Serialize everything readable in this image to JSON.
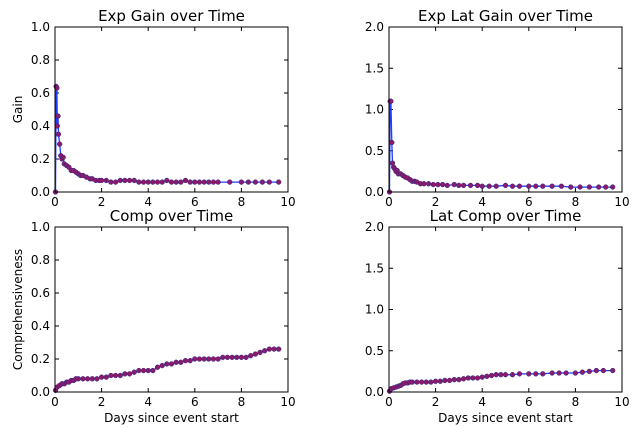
{
  "chart_data": [
    {
      "type": "line",
      "title": "Exp Gain over Time",
      "xlabel": "",
      "ylabel": "Gain",
      "xlim": [
        0,
        10
      ],
      "ylim": [
        0,
        1.0
      ],
      "xticks": [
        "0",
        "2",
        "4",
        "6",
        "8",
        "10"
      ],
      "yticks": [
        "0.0",
        "0.2",
        "0.4",
        "0.6",
        "0.8",
        "1.0"
      ],
      "grid": false,
      "line_color": "#1f3cff",
      "marker_color": "#8b1a6b",
      "series": [
        {
          "x": [
            0.02,
            0.05,
            0.08,
            0.1,
            0.13,
            0.15,
            0.2,
            0.25,
            0.3,
            0.35,
            0.4,
            0.5,
            0.6,
            0.7,
            0.8,
            0.9,
            1.0,
            1.1,
            1.2,
            1.35,
            1.5,
            1.6,
            1.75,
            1.9,
            2.0,
            2.2,
            2.4,
            2.6,
            2.8,
            3.0,
            3.2,
            3.4,
            3.6,
            3.8,
            4.0,
            4.2,
            4.4,
            4.6,
            4.8,
            5.0,
            5.2,
            5.4,
            5.6,
            5.8,
            6.0,
            6.2,
            6.4,
            6.6,
            6.8,
            7.0,
            7.5,
            8.0,
            8.3,
            8.6,
            8.9,
            9.2,
            9.6
          ],
          "y": [
            0.0,
            0.64,
            0.63,
            0.4,
            0.46,
            0.35,
            0.29,
            0.22,
            0.2,
            0.21,
            0.17,
            0.16,
            0.15,
            0.13,
            0.13,
            0.12,
            0.11,
            0.1,
            0.1,
            0.09,
            0.08,
            0.08,
            0.07,
            0.07,
            0.07,
            0.07,
            0.06,
            0.06,
            0.07,
            0.07,
            0.07,
            0.07,
            0.06,
            0.06,
            0.06,
            0.06,
            0.06,
            0.06,
            0.07,
            0.06,
            0.06,
            0.06,
            0.07,
            0.06,
            0.06,
            0.06,
            0.06,
            0.06,
            0.06,
            0.06,
            0.06,
            0.06,
            0.06,
            0.06,
            0.06,
            0.06,
            0.06
          ]
        }
      ]
    },
    {
      "type": "line",
      "title": "Exp Lat Gain over Time",
      "xlabel": "",
      "ylabel": "",
      "xlim": [
        0,
        10
      ],
      "ylim": [
        0,
        2.0
      ],
      "xticks": [
        "0",
        "2",
        "4",
        "6",
        "8",
        "10"
      ],
      "yticks": [
        "0.0",
        "0.5",
        "1.0",
        "1.5",
        "2.0"
      ],
      "grid": false,
      "line_color": "#1f3cff",
      "marker_color": "#8b1a6b",
      "series": [
        {
          "x": [
            0.02,
            0.05,
            0.08,
            0.12,
            0.15,
            0.2,
            0.25,
            0.3,
            0.35,
            0.4,
            0.5,
            0.6,
            0.7,
            0.8,
            0.9,
            1.0,
            1.1,
            1.2,
            1.35,
            1.5,
            1.7,
            1.9,
            2.1,
            2.3,
            2.5,
            2.8,
            3.0,
            3.2,
            3.5,
            3.8,
            4.0,
            4.3,
            4.6,
            5.0,
            5.3,
            5.6,
            6.0,
            6.3,
            6.6,
            7.0,
            7.4,
            7.8,
            8.2,
            8.6,
            9.0,
            9.3,
            9.6
          ],
          "y": [
            0.0,
            1.1,
            1.1,
            0.6,
            0.35,
            0.3,
            0.28,
            0.25,
            0.26,
            0.22,
            0.22,
            0.2,
            0.18,
            0.17,
            0.15,
            0.13,
            0.13,
            0.12,
            0.1,
            0.1,
            0.1,
            0.09,
            0.09,
            0.09,
            0.08,
            0.09,
            0.08,
            0.08,
            0.08,
            0.08,
            0.07,
            0.07,
            0.07,
            0.08,
            0.07,
            0.07,
            0.07,
            0.07,
            0.07,
            0.07,
            0.07,
            0.06,
            0.06,
            0.06,
            0.06,
            0.06,
            0.06
          ]
        }
      ]
    },
    {
      "type": "line",
      "title": "Comp over Time",
      "xlabel": "Days since event start",
      "ylabel": "Comprehensiveness",
      "xlim": [
        0,
        10
      ],
      "ylim": [
        0,
        1.0
      ],
      "xticks": [
        "0",
        "2",
        "4",
        "6",
        "8",
        "10"
      ],
      "yticks": [
        "0.0",
        "0.2",
        "0.4",
        "0.6",
        "0.8",
        "1.0"
      ],
      "grid": false,
      "line_color": "#1f3cff",
      "marker_color": "#8b1a6b",
      "series": [
        {
          "x": [
            0.02,
            0.1,
            0.2,
            0.3,
            0.4,
            0.5,
            0.6,
            0.7,
            0.8,
            0.9,
            1.0,
            1.2,
            1.4,
            1.6,
            1.8,
            2.0,
            2.2,
            2.4,
            2.6,
            2.8,
            3.0,
            3.2,
            3.4,
            3.6,
            3.8,
            4.0,
            4.2,
            4.4,
            4.6,
            4.8,
            5.0,
            5.2,
            5.4,
            5.6,
            5.8,
            6.0,
            6.2,
            6.4,
            6.6,
            6.8,
            7.0,
            7.2,
            7.4,
            7.6,
            7.8,
            8.0,
            8.2,
            8.4,
            8.6,
            8.8,
            9.0,
            9.2,
            9.4,
            9.6
          ],
          "y": [
            0.01,
            0.03,
            0.04,
            0.05,
            0.05,
            0.06,
            0.06,
            0.07,
            0.07,
            0.08,
            0.08,
            0.08,
            0.08,
            0.08,
            0.08,
            0.09,
            0.09,
            0.1,
            0.1,
            0.1,
            0.11,
            0.11,
            0.12,
            0.13,
            0.13,
            0.13,
            0.13,
            0.15,
            0.16,
            0.17,
            0.17,
            0.18,
            0.18,
            0.19,
            0.19,
            0.2,
            0.2,
            0.2,
            0.2,
            0.2,
            0.2,
            0.21,
            0.21,
            0.21,
            0.21,
            0.21,
            0.21,
            0.22,
            0.23,
            0.24,
            0.25,
            0.26,
            0.26,
            0.26
          ]
        }
      ]
    },
    {
      "type": "line",
      "title": "Lat Comp over Time",
      "xlabel": "Days since event start",
      "ylabel": "",
      "xlim": [
        0,
        10
      ],
      "ylim": [
        0,
        2.0
      ],
      "xticks": [
        "0",
        "2",
        "4",
        "6",
        "8",
        "10"
      ],
      "yticks": [
        "0.0",
        "0.5",
        "1.0",
        "1.5",
        "2.0"
      ],
      "grid": false,
      "line_color": "#1f3cff",
      "marker_color": "#8b1a6b",
      "series": [
        {
          "x": [
            0.02,
            0.1,
            0.2,
            0.3,
            0.4,
            0.5,
            0.6,
            0.7,
            0.8,
            0.9,
            1.0,
            1.2,
            1.4,
            1.6,
            1.8,
            2.0,
            2.2,
            2.4,
            2.6,
            2.8,
            3.0,
            3.2,
            3.4,
            3.6,
            3.8,
            4.0,
            4.2,
            4.4,
            4.6,
            4.8,
            5.0,
            5.3,
            5.6,
            6.0,
            6.3,
            6.6,
            7.0,
            7.3,
            7.6,
            8.0,
            8.3,
            8.6,
            8.9,
            9.2,
            9.6
          ],
          "y": [
            0.01,
            0.04,
            0.05,
            0.06,
            0.07,
            0.08,
            0.1,
            0.11,
            0.11,
            0.12,
            0.12,
            0.12,
            0.12,
            0.12,
            0.12,
            0.13,
            0.13,
            0.14,
            0.14,
            0.15,
            0.15,
            0.16,
            0.17,
            0.17,
            0.17,
            0.18,
            0.19,
            0.2,
            0.21,
            0.21,
            0.21,
            0.21,
            0.22,
            0.22,
            0.22,
            0.22,
            0.23,
            0.23,
            0.23,
            0.23,
            0.24,
            0.25,
            0.26,
            0.26,
            0.26
          ]
        }
      ]
    }
  ]
}
